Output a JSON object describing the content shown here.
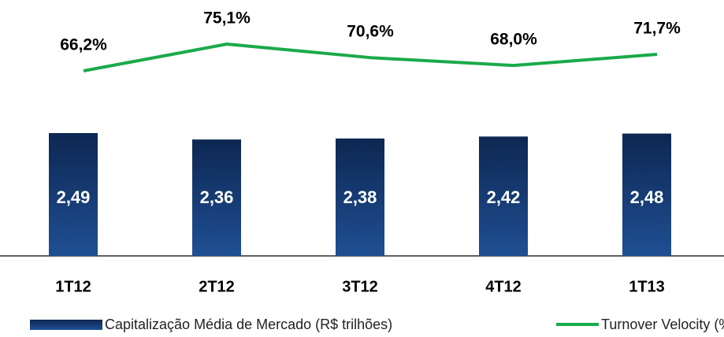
{
  "chart_data": {
    "type": "bar",
    "categories": [
      "1T12",
      "2T12",
      "3T12",
      "4T12",
      "1T13"
    ],
    "series": [
      {
        "name": "Capitalização Média de Mercado (R$ trilhões)",
        "type": "bar",
        "color": "#1a417c",
        "values": [
          2.49,
          2.36,
          2.38,
          2.42,
          2.48
        ],
        "value_labels": [
          "2,49",
          "2,36",
          "2,38",
          "2,42",
          "2,48"
        ]
      },
      {
        "name": "Turnover Velocity (%)",
        "type": "line",
        "color": "#1aaa4a",
        "values": [
          66.2,
          75.1,
          70.6,
          68.0,
          71.7
        ],
        "value_labels": [
          "66,2%",
          "75,1%",
          "70,6%",
          "68,0%",
          "71,7%"
        ]
      }
    ],
    "legend": "bottom"
  }
}
